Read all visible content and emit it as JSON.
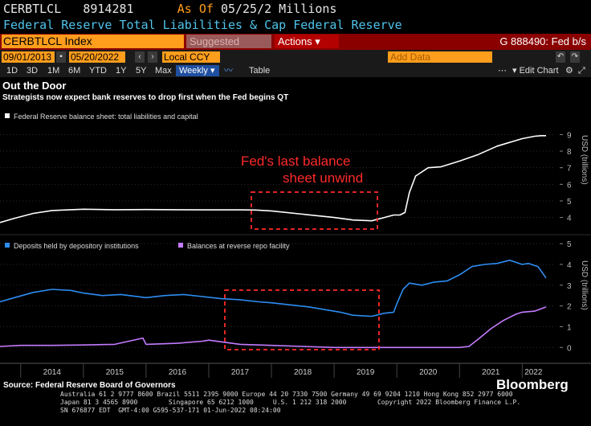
{
  "header": {
    "ticker": "CERBTLCL",
    "id": "8914281",
    "as_of": "As Of",
    "date_units": "05/25/2 Millions",
    "description": "Federal Reserve Total Liabilities & Cap Federal Reserve"
  },
  "toolbar": {
    "security": "CERBTLCL Index",
    "suggested": "Suggested Charts",
    "actions": "Actions",
    "function": "G 888490: Fed b/s",
    "start_date": "09/01/2013",
    "end_date": "05/20/2022",
    "currency": "Local CCY",
    "add_data": "Add Data",
    "edit_chart": "Edit Chart",
    "periods": [
      "1D",
      "3D",
      "1M",
      "6M",
      "YTD",
      "1Y",
      "5Y",
      "Max"
    ],
    "frequency": "Weekly",
    "table": "Table"
  },
  "chart_data": [
    {
      "type": "line",
      "title": "Out the Door",
      "subtitle": "Strategists now expect bank reserves to drop first when the Fed begins QT",
      "ylabel": "USD (trillions)",
      "ylim": [
        3.4,
        9.6
      ],
      "yticks": [
        4,
        5,
        6,
        7,
        8,
        9
      ],
      "series": [
        {
          "name": "Federal Reserve balance sheet: total liabilities and capital",
          "color": "#ffffff",
          "x": [
            2013.67,
            2013.9,
            2014.2,
            2014.5,
            2014.8,
            2015.0,
            2015.5,
            2016.0,
            2016.5,
            2017.0,
            2017.5,
            2017.75,
            2018.0,
            2018.5,
            2019.0,
            2019.3,
            2019.6,
            2019.8,
            2019.95,
            2020.05,
            2020.13,
            2020.2,
            2020.3,
            2020.5,
            2020.7,
            2021.0,
            2021.3,
            2021.6,
            2022.0,
            2022.2,
            2022.3,
            2022.38
          ],
          "values": [
            3.7,
            3.95,
            4.25,
            4.42,
            4.47,
            4.5,
            4.47,
            4.48,
            4.47,
            4.46,
            4.46,
            4.45,
            4.4,
            4.2,
            4.0,
            3.85,
            3.8,
            4.0,
            4.15,
            4.15,
            4.3,
            5.5,
            6.5,
            7.0,
            7.05,
            7.4,
            7.8,
            8.3,
            8.75,
            8.9,
            8.93,
            8.93
          ]
        }
      ],
      "annotation": [
        "Fed's last balance",
        "sheet unwind"
      ]
    },
    {
      "type": "line",
      "ylabel": "USD (trillions)",
      "ylim": [
        -0.3,
        5.2
      ],
      "yticks": [
        0,
        1,
        2,
        3,
        4,
        5
      ],
      "series": [
        {
          "name": "Deposits held by depository institutions",
          "color": "#2d8cf0",
          "x": [
            2013.67,
            2013.9,
            2014.2,
            2014.5,
            2014.8,
            2015.0,
            2015.3,
            2015.6,
            2016.0,
            2016.3,
            2016.6,
            2016.9,
            2017.2,
            2017.5,
            2017.8,
            2018.0,
            2018.3,
            2018.6,
            2018.9,
            2019.1,
            2019.3,
            2019.6,
            2019.8,
            2019.95,
            2020.0,
            2020.1,
            2020.2,
            2020.4,
            2020.6,
            2020.8,
            2021.0,
            2021.2,
            2021.4,
            2021.6,
            2021.8,
            2022.0,
            2022.1,
            2022.25,
            2022.38
          ],
          "values": [
            2.2,
            2.4,
            2.65,
            2.8,
            2.75,
            2.62,
            2.5,
            2.55,
            2.4,
            2.5,
            2.55,
            2.45,
            2.35,
            2.3,
            2.2,
            2.15,
            2.05,
            1.95,
            1.8,
            1.7,
            1.55,
            1.5,
            1.65,
            1.7,
            2.1,
            2.8,
            3.1,
            3.0,
            3.15,
            3.2,
            3.5,
            3.9,
            4.0,
            4.05,
            4.2,
            4.0,
            4.05,
            3.9,
            3.35
          ]
        },
        {
          "name": "Balances at reverse repo facility",
          "color": "#c47bff",
          "x": [
            2013.67,
            2014.0,
            2014.5,
            2015.0,
            2015.5,
            2015.95,
            2016.0,
            2016.5,
            2016.9,
            2017.0,
            2017.5,
            2018.0,
            2018.5,
            2019.0,
            2019.5,
            2020.0,
            2020.5,
            2021.0,
            2021.15,
            2021.3,
            2021.5,
            2021.7,
            2021.9,
            2022.0,
            2022.2,
            2022.38
          ],
          "values": [
            0.05,
            0.1,
            0.1,
            0.12,
            0.15,
            0.45,
            0.15,
            0.2,
            0.3,
            0.35,
            0.15,
            0.1,
            0.05,
            0.0,
            0.0,
            0.0,
            0.0,
            0.0,
            0.05,
            0.4,
            0.9,
            1.3,
            1.6,
            1.7,
            1.75,
            1.95
          ]
        }
      ],
      "xticks": [
        "2014",
        "2015",
        "2016",
        "2017",
        "2018",
        "2019",
        "2020",
        "2021",
        "2022"
      ]
    }
  ],
  "footer": {
    "source": "Source: Federal Reserve Board of Governors",
    "contacts_line1": "Australia 61 2 9777 8600 Brazil 5511 2395 9000 Europe 44 20 7330 7500 Germany 49 69 9204 1210 Hong Kong 852 2977 6000",
    "contacts_line2": "Japan 81 3 4565 8900        Singapore 65 6212 1000     U.S. 1 212 318 2000        Copyright 2022 Bloomberg Finance L.P.",
    "contacts_line3": "SN 676877 EDT  GMT-4:00 G595-537-171 01-Jun-2022 08:24:00",
    "logo": "Bloomberg"
  }
}
